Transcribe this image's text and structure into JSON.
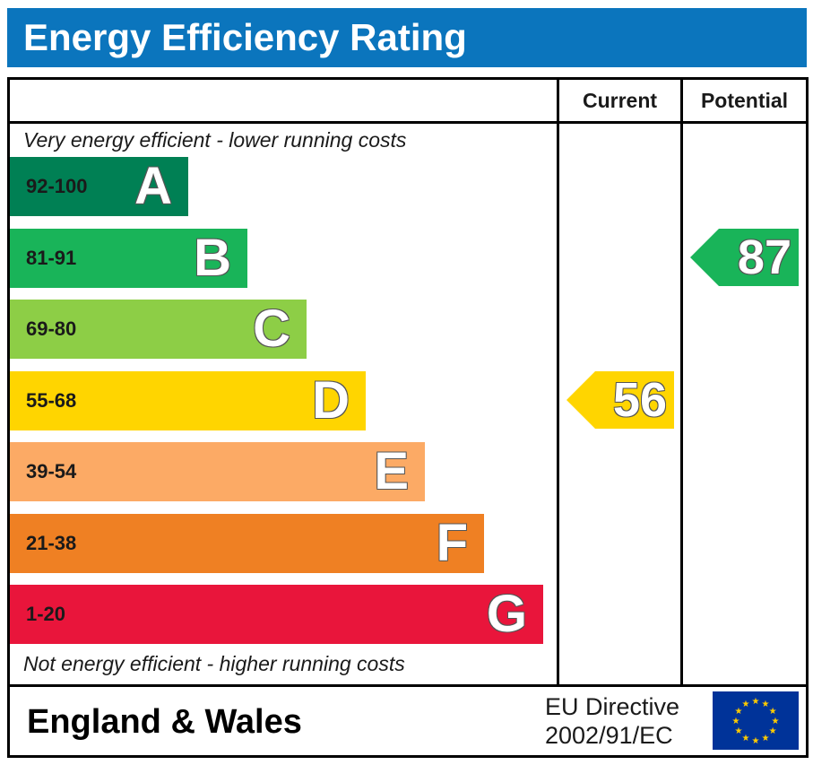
{
  "header": {
    "title": "Energy Efficiency Rating"
  },
  "columns": {
    "current": "Current",
    "potential": "Potential"
  },
  "notes": {
    "top": "Very energy efficient - lower running costs",
    "bottom": "Not energy efficient - higher running costs"
  },
  "footer": {
    "region": "England & Wales",
    "directive_line1": "EU Directive",
    "directive_line2": "2002/91/EC"
  },
  "colors": {
    "header": "#0b75bd",
    "A": "#008054",
    "B": "#19b459",
    "C": "#8dce46",
    "D": "#ffd500",
    "E": "#fcaa65",
    "F": "#ef8023",
    "G": "#e9153b",
    "eu_blue": "#003399",
    "eu_star": "#ffcc00"
  },
  "chart_data": {
    "type": "bar",
    "title": "Energy Efficiency Rating",
    "bands": [
      {
        "letter": "A",
        "range": "92-100",
        "min": 92,
        "max": 100
      },
      {
        "letter": "B",
        "range": "81-91",
        "min": 81,
        "max": 91
      },
      {
        "letter": "C",
        "range": "69-80",
        "min": 69,
        "max": 80
      },
      {
        "letter": "D",
        "range": "55-68",
        "min": 55,
        "max": 68
      },
      {
        "letter": "E",
        "range": "39-54",
        "min": 39,
        "max": 54
      },
      {
        "letter": "F",
        "range": "21-38",
        "min": 21,
        "max": 38
      },
      {
        "letter": "G",
        "range": "1-20",
        "min": 1,
        "max": 20
      }
    ],
    "series": [
      {
        "name": "Current",
        "value": 56,
        "band": "D"
      },
      {
        "name": "Potential",
        "value": 87,
        "band": "B"
      }
    ]
  }
}
